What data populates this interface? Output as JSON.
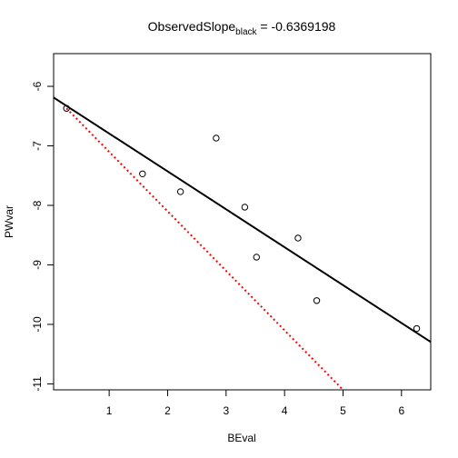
{
  "chart_data": {
    "type": "scatter",
    "title": {
      "main": "ObservedSlope",
      "subscript": "black",
      "rest": " = -0.6369198"
    },
    "xlabel": "BEval",
    "ylabel": "PWvar",
    "xlim": [
      0.05,
      6.5
    ],
    "ylim": [
      -11.1,
      -5.45
    ],
    "x_ticks": [
      1,
      2,
      3,
      4,
      5,
      6
    ],
    "y_ticks": [
      -11,
      -10,
      -9,
      -8,
      -7,
      -6
    ],
    "grid": false,
    "legend": "none",
    "series": [
      {
        "points": [
          [
            0.27,
            -6.37
          ],
          [
            1.57,
            -7.47
          ],
          [
            2.22,
            -7.77
          ],
          [
            2.83,
            -6.87
          ],
          [
            3.32,
            -8.03
          ],
          [
            3.52,
            -8.87
          ],
          [
            4.23,
            -8.55
          ],
          [
            4.55,
            -9.6
          ],
          [
            6.26,
            -10.07
          ]
        ],
        "marker": "open-circle",
        "color": "#000000"
      }
    ],
    "lines": [
      {
        "style": "solid",
        "color": "#000000",
        "intercept": -6.1555,
        "slope": -0.6369198
      },
      {
        "style": "dotted",
        "color": "#ff0000",
        "intercept": -6.1,
        "slope": -1.0,
        "x_from": 0.27
      }
    ]
  }
}
